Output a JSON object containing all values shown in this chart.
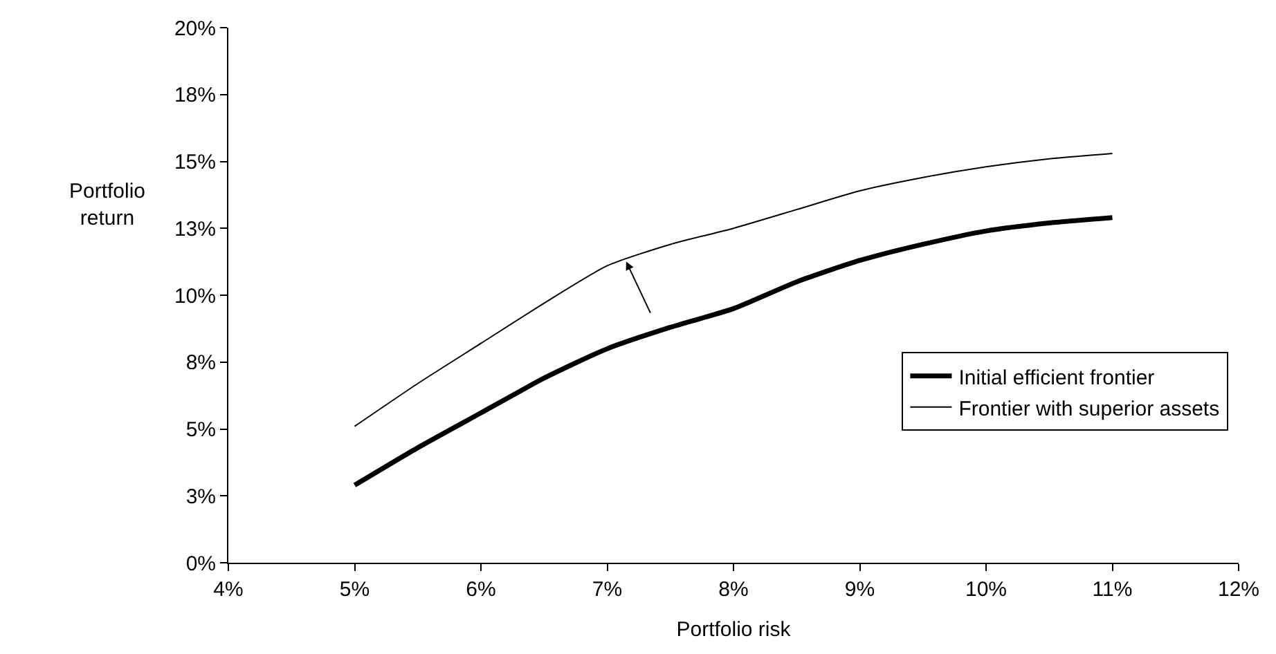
{
  "chart_data": {
    "type": "line",
    "xlabel": "Portfolio risk",
    "ylabel": "Portfolio\nreturn",
    "x": [
      5,
      5.5,
      6,
      6.5,
      7,
      7.5,
      8,
      8.5,
      9,
      9.5,
      10,
      10.5,
      11
    ],
    "series": [
      {
        "name": "Initial efficient frontier",
        "color": "#000000",
        "values": [
          2.9,
          4.3,
          5.6,
          6.9,
          8.0,
          8.8,
          9.5,
          10.5,
          11.3,
          11.9,
          12.4,
          12.7,
          12.9
        ]
      },
      {
        "name": "Frontier with superior assets",
        "color": "#000000",
        "values": [
          5.1,
          6.7,
          8.2,
          9.7,
          11.1,
          11.9,
          12.5,
          13.2,
          13.9,
          14.4,
          14.8,
          15.1,
          15.3
        ]
      }
    ],
    "xlim": [
      4,
      12
    ],
    "xticks": [
      {
        "value": 4,
        "label": "4%"
      },
      {
        "value": 5,
        "label": "5%"
      },
      {
        "value": 6,
        "label": "6%"
      },
      {
        "value": 7,
        "label": "7%"
      },
      {
        "value": 8,
        "label": "8%"
      },
      {
        "value": 9,
        "label": "9%"
      },
      {
        "value": 10,
        "label": "10%"
      },
      {
        "value": 11,
        "label": "11%"
      },
      {
        "value": 12,
        "label": "12%"
      }
    ],
    "ylim": [
      0,
      20
    ],
    "yticks": [
      {
        "value": 0,
        "label": "0%"
      },
      {
        "value": 2.5,
        "label": "3%"
      },
      {
        "value": 5,
        "label": "5%"
      },
      {
        "value": 7.5,
        "label": "8%"
      },
      {
        "value": 10,
        "label": "10%"
      },
      {
        "value": 12.5,
        "label": "13%"
      },
      {
        "value": 15,
        "label": "15%"
      },
      {
        "value": 17.5,
        "label": "18%"
      },
      {
        "value": 20,
        "label": "20%"
      }
    ],
    "legend": "right",
    "marker": "none",
    "line_style": "solid"
  }
}
